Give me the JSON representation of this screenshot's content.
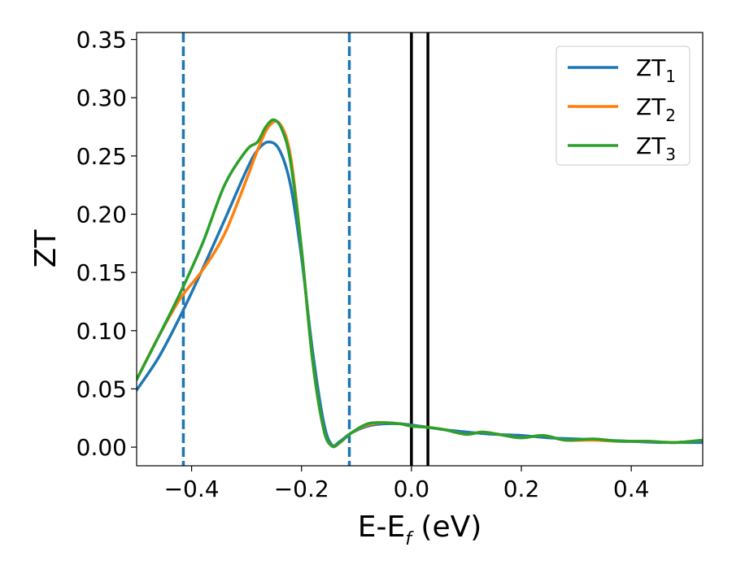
{
  "chart_data": {
    "type": "line",
    "xlabel": {
      "main": "E-E",
      "sub": "f",
      "rest": " (eV)"
    },
    "ylabel": "ZT",
    "xlim": [
      -0.5,
      0.53
    ],
    "ylim": [
      -0.016,
      0.356
    ],
    "xticks": [
      -0.4,
      -0.2,
      0.0,
      0.2,
      0.4
    ],
    "xtick_labels": [
      "−0.4",
      "−0.2",
      "0.0",
      "0.2",
      "0.4"
    ],
    "yticks": [
      0.0,
      0.05,
      0.1,
      0.15,
      0.2,
      0.25,
      0.3,
      0.35
    ],
    "ytick_labels": [
      "0.00",
      "0.05",
      "0.10",
      "0.15",
      "0.20",
      "0.25",
      "0.30",
      "0.35"
    ],
    "grid": false,
    "legend_position": "top-right",
    "series": [
      {
        "name": "ZT",
        "name_sub": "1",
        "color": "#1f77b4",
        "x": [
          -0.5,
          -0.46,
          -0.42,
          -0.38,
          -0.34,
          -0.3,
          -0.28,
          -0.26,
          -0.24,
          -0.22,
          -0.2,
          -0.18,
          -0.16,
          -0.145,
          -0.13,
          -0.11,
          -0.08,
          -0.05,
          -0.02,
          0.0,
          0.03,
          0.06,
          0.1,
          0.15,
          0.2,
          0.25,
          0.3,
          0.35,
          0.4,
          0.45,
          0.5,
          0.53
        ],
        "y": [
          0.049,
          0.077,
          0.113,
          0.153,
          0.195,
          0.238,
          0.255,
          0.262,
          0.255,
          0.225,
          0.163,
          0.083,
          0.022,
          0.002,
          0.005,
          0.012,
          0.018,
          0.02,
          0.02,
          0.019,
          0.017,
          0.015,
          0.013,
          0.011,
          0.01,
          0.008,
          0.007,
          0.006,
          0.005,
          0.004,
          0.004,
          0.004
        ]
      },
      {
        "name": "ZT",
        "name_sub": "2",
        "color": "#ff7f0e",
        "x": [
          -0.5,
          -0.46,
          -0.42,
          -0.38,
          -0.34,
          -0.3,
          -0.28,
          -0.26,
          -0.24,
          -0.22,
          -0.2,
          -0.18,
          -0.16,
          -0.145,
          -0.13,
          -0.11,
          -0.08,
          -0.05,
          -0.02,
          0.0,
          0.03,
          0.06,
          0.1,
          0.13,
          0.17,
          0.2,
          0.24,
          0.28,
          0.33,
          0.38,
          0.43,
          0.48,
          0.53
        ],
        "y": [
          0.058,
          0.095,
          0.128,
          0.152,
          0.183,
          0.23,
          0.255,
          0.275,
          0.278,
          0.25,
          0.17,
          0.075,
          0.016,
          0.001,
          0.004,
          0.012,
          0.019,
          0.021,
          0.02,
          0.018,
          0.017,
          0.015,
          0.011,
          0.013,
          0.01,
          0.008,
          0.01,
          0.006,
          0.006,
          0.005,
          0.005,
          0.004,
          0.006
        ]
      },
      {
        "name": "ZT",
        "name_sub": "3",
        "color": "#2ca02c",
        "x": [
          -0.5,
          -0.46,
          -0.42,
          -0.38,
          -0.34,
          -0.3,
          -0.28,
          -0.265,
          -0.25,
          -0.235,
          -0.22,
          -0.2,
          -0.18,
          -0.16,
          -0.145,
          -0.13,
          -0.11,
          -0.08,
          -0.05,
          -0.02,
          0.0,
          0.03,
          0.06,
          0.1,
          0.13,
          0.17,
          0.2,
          0.24,
          0.28,
          0.33,
          0.38,
          0.43,
          0.48,
          0.53
        ],
        "y": [
          0.058,
          0.095,
          0.133,
          0.175,
          0.225,
          0.255,
          0.262,
          0.275,
          0.281,
          0.272,
          0.245,
          0.17,
          0.075,
          0.016,
          0.001,
          0.004,
          0.012,
          0.02,
          0.021,
          0.02,
          0.018,
          0.017,
          0.015,
          0.011,
          0.013,
          0.01,
          0.008,
          0.01,
          0.006,
          0.007,
          0.005,
          0.005,
          0.004,
          0.006
        ]
      }
    ],
    "vlines": [
      {
        "x": -0.415,
        "style": "dashed",
        "color": "#1f77b4"
      },
      {
        "x": -0.113,
        "style": "dashed",
        "color": "#1f77b4"
      },
      {
        "x": 0.0,
        "style": "solid",
        "color": "#000000"
      },
      {
        "x": 0.03,
        "style": "solid",
        "color": "#000000"
      }
    ]
  }
}
